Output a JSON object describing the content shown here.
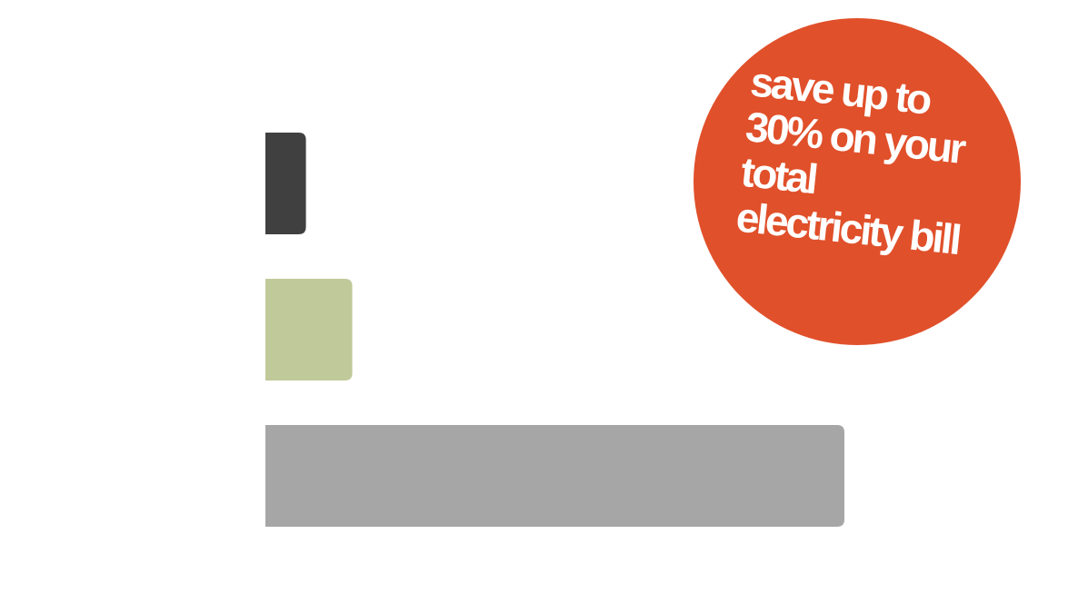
{
  "chart_data": {
    "type": "bar",
    "orientation": "horizontal",
    "categories": [
      null,
      null,
      null
    ],
    "values": [
      7,
      15,
      100
    ],
    "colors": [
      "#404040",
      "#c0c999",
      "#a6a6a6"
    ],
    "xlim": [
      0,
      100
    ],
    "annotation": [
      "save up to",
      "30% on your",
      "total",
      "electricity bill"
    ],
    "annotation_color": "#e0502a"
  }
}
